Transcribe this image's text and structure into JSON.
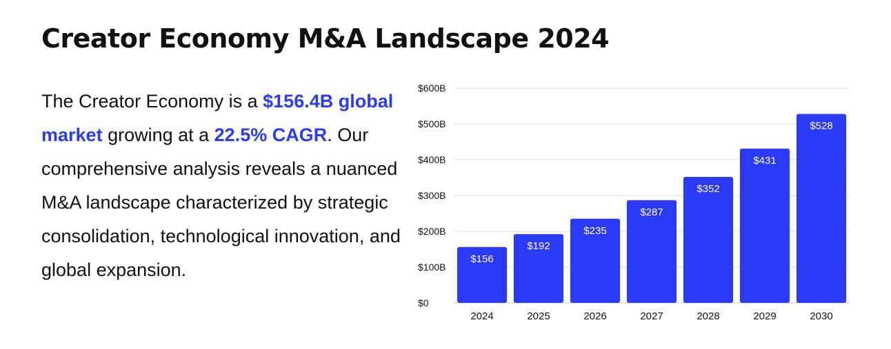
{
  "header": {
    "title": "Creator Economy M&A Landscape 2024"
  },
  "description": {
    "segments": [
      {
        "text": "The Creator Economy is a ",
        "highlight": false
      },
      {
        "text": "$156.4B global market",
        "highlight": true
      },
      {
        "text": " growing at a ",
        "highlight": false
      },
      {
        "text": "22.5% CAGR",
        "highlight": true
      },
      {
        "text": ". Our comprehensive analysis reveals a nuanced M&A landscape characterized by strategic consolidation, technological innovation, and global expansion.",
        "highlight": false
      }
    ]
  },
  "colors": {
    "accent": "#2b3bf5",
    "bar": "#2b3bf5",
    "text": "#111111",
    "grid": "#d9d9d9"
  },
  "chart_data": {
    "type": "bar",
    "categories": [
      "2024",
      "2025",
      "2026",
      "2027",
      "2028",
      "2029",
      "2030"
    ],
    "values": [
      156,
      192,
      235,
      287,
      352,
      431,
      528
    ],
    "data_labels": [
      "$156",
      "$192",
      "$235",
      "$287",
      "$352",
      "$431",
      "$528"
    ],
    "y_ticks": [
      0,
      100,
      200,
      300,
      400,
      500,
      600
    ],
    "y_tick_labels": [
      "$0",
      "$100B",
      "$200B",
      "$300B",
      "$400B",
      "$500B",
      "$600B"
    ],
    "ylim": [
      0,
      600
    ],
    "grid": true,
    "legend": "none",
    "title": "",
    "xlabel": "",
    "ylabel": ""
  }
}
